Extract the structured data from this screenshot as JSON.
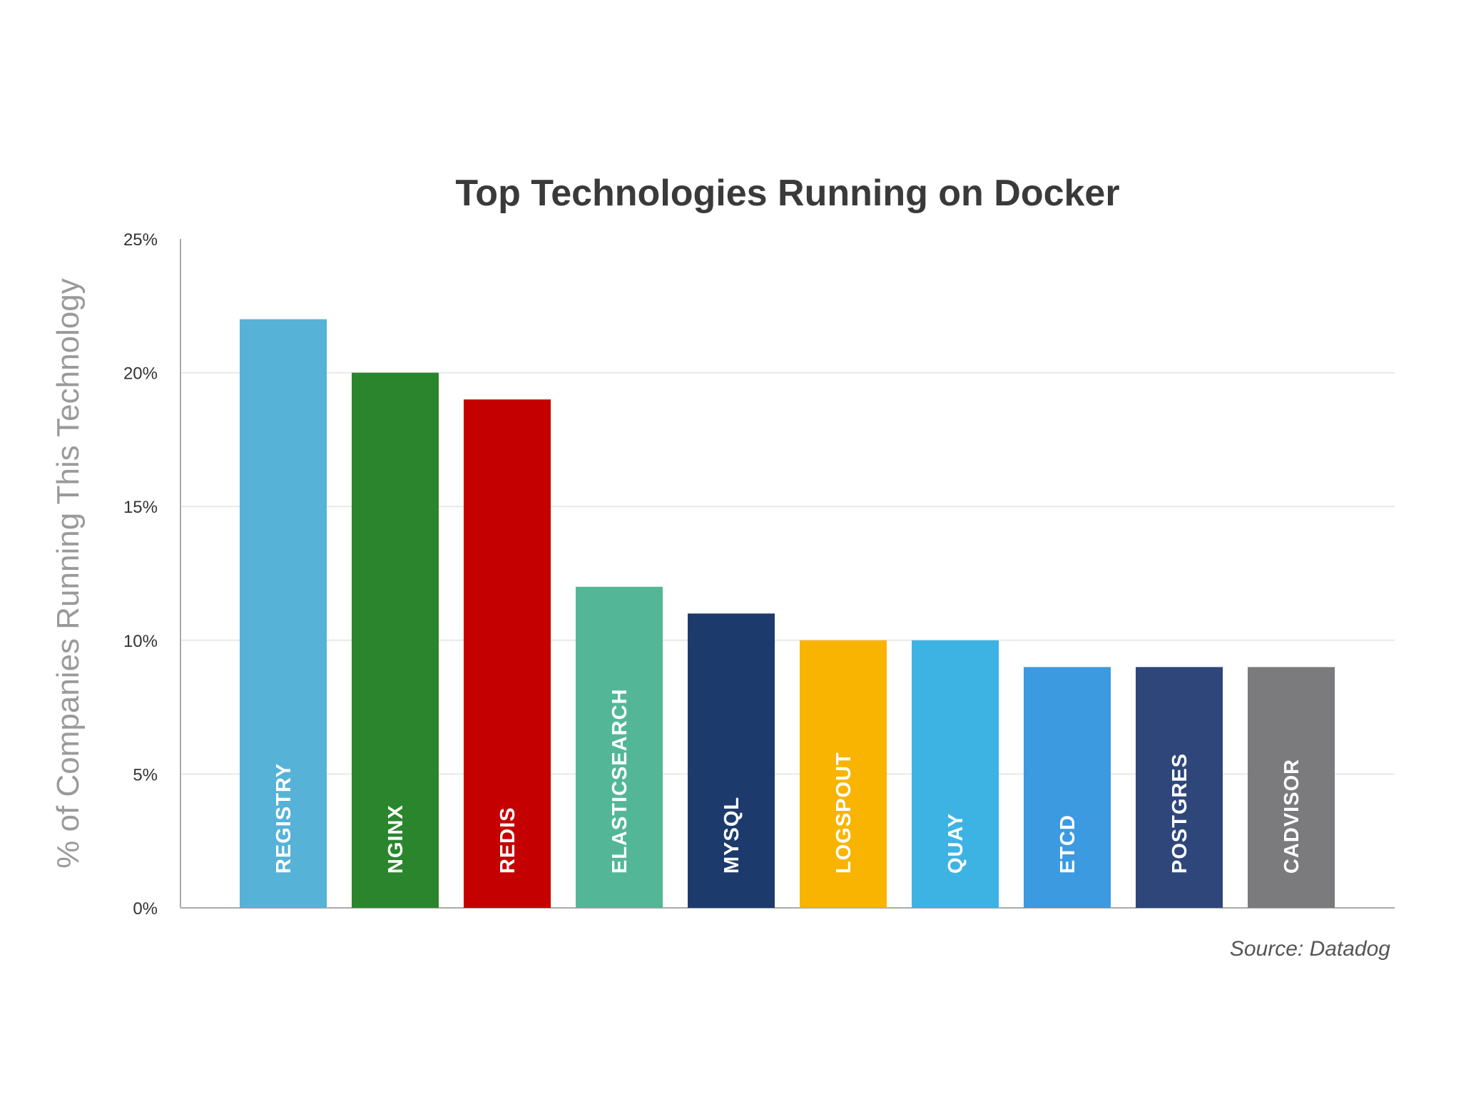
{
  "chart_data": {
    "type": "bar",
    "title": "Top Technologies Running on Docker",
    "xlabel": "",
    "ylabel": "% of Companies Running This Technology",
    "categories": [
      "REGISTRY",
      "NGINX",
      "REDIS",
      "ELASTICSEARCH",
      "MYSQL",
      "LOGSPOUT",
      "QUAY",
      "ETCD",
      "POSTGRES",
      "CADVISOR"
    ],
    "values": [
      22,
      20,
      19,
      12,
      11,
      10,
      10,
      9,
      9,
      9
    ],
    "colors": [
      "#56b2d6",
      "#2a852d",
      "#c40000",
      "#53b797",
      "#1d3a6c",
      "#f8b400",
      "#3db3e4",
      "#3c9ae0",
      "#2e467a",
      "#7b7b7d"
    ],
    "ylim": [
      0,
      25
    ],
    "yticks": [
      0,
      5,
      10,
      15,
      20,
      25
    ],
    "ytick_labels": [
      "0%",
      "5%",
      "10%",
      "15%",
      "20%",
      "25%"
    ],
    "grid": true,
    "bar_labels_inside": true,
    "source": "Source: Datadog"
  }
}
